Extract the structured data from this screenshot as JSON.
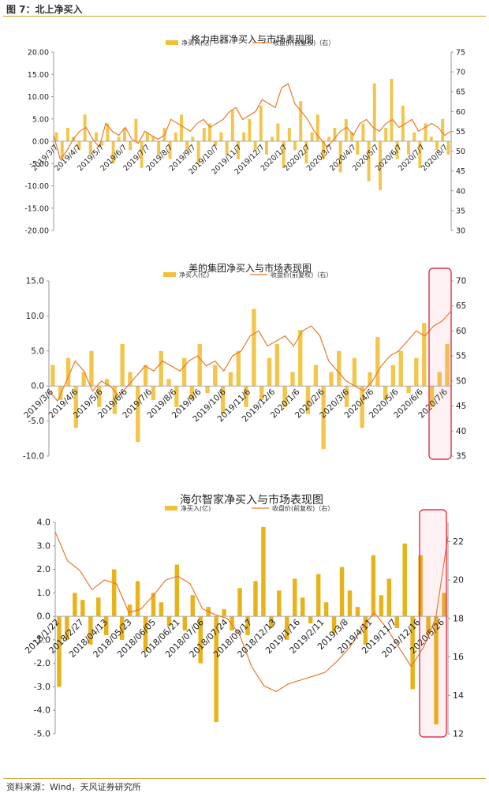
{
  "caption": "图 7：北上净买入",
  "source": "资料来源：Wind，天风证券研究所",
  "colors": {
    "bar": "#f2c037",
    "barStrong": "#e5ab00",
    "line": "#e8792b",
    "highlightStroke": "#e0334a",
    "highlightFill": "rgba(240,120,140,0.10)",
    "rule": "#c9a227"
  },
  "chart_data": [
    {
      "type": "bar+line",
      "title": "格力电器净买入与市场表现图",
      "legend": {
        "bar": "净买入(亿)",
        "line": "收盘价(前复权)（右）",
        "placement": "top-center"
      },
      "yleft": {
        "min": -20,
        "max": 20,
        "ticks": [
          "20.00",
          "15.00",
          "10.00",
          "5.00",
          "0.00",
          "-5.00",
          "-10.00",
          "-15.00",
          "-20.00"
        ]
      },
      "yright": {
        "min": 30,
        "max": 75,
        "ticks": [
          "75",
          "70",
          "65",
          "60",
          "55",
          "50",
          "45",
          "40",
          "35",
          "30"
        ]
      },
      "xticks": [
        "2019/3/7",
        "2019/4/7",
        "2019/5/7",
        "2019/6/7",
        "2019/7/7",
        "2019/8/7",
        "2019/9/7",
        "2019/10/7",
        "2019/11/7",
        "2019/12/7",
        "2020/1/7",
        "2020/2/7",
        "2020/3/7",
        "2020/4/7",
        "2020/5/7",
        "2020/6/7",
        "2020/7/7",
        "2020/8/7"
      ],
      "line": [
        54,
        48,
        50,
        53,
        55,
        56,
        53,
        51,
        57,
        55,
        54,
        56,
        53,
        52,
        55,
        54,
        53,
        54,
        58,
        57,
        56,
        55,
        57,
        58,
        56,
        57,
        58,
        60,
        61,
        58,
        59,
        60,
        63,
        62,
        61,
        66,
        67,
        62,
        60,
        58,
        55,
        53,
        51,
        53,
        55,
        56,
        54,
        57,
        58,
        56,
        55,
        57,
        58,
        56,
        57,
        58,
        55,
        56,
        57,
        56,
        54,
        55
      ],
      "bars": [
        2,
        -4,
        3,
        1,
        -2,
        6,
        -3,
        2,
        -1,
        4,
        -5,
        1,
        3,
        -2,
        5,
        -6,
        2,
        1,
        -3,
        3,
        -4,
        2,
        6,
        -2,
        1,
        -5,
        3,
        4,
        -1,
        2,
        -3,
        7,
        -4,
        2,
        5,
        -2,
        8,
        -3,
        1,
        4,
        -6,
        3,
        -2,
        9,
        -5,
        2,
        6,
        -4,
        1,
        3,
        -7,
        5,
        2,
        -3,
        4,
        -9,
        13,
        -11,
        3,
        14,
        -4,
        8,
        -3,
        2,
        -6,
        4,
        1,
        -2,
        5,
        -3
      ],
      "highlight": null
    },
    {
      "type": "bar+line",
      "title": "美的集团净买入与市场表现图",
      "legend": {
        "bar": "净买入(亿)",
        "line": "收盘价(前复权)（右）",
        "placement": "top-center"
      },
      "yleft": {
        "min": -10,
        "max": 15,
        "ticks": [
          "15.0",
          "10.0",
          "5.0",
          "0.0",
          "-5.0",
          "-10.0"
        ]
      },
      "yright": {
        "min": 35,
        "max": 70,
        "ticks": [
          "70",
          "65",
          "60",
          "55",
          "50",
          "45",
          "40",
          "35"
        ]
      },
      "xticks": [
        "2019/3/6",
        "2019/4/6",
        "2019/5/6",
        "2019/6/6",
        "2019/7/6",
        "2019/8/6",
        "2019/9/6",
        "2019/10/6",
        "2019/11/6",
        "2019/12/6",
        "2020/1/6",
        "2020/2/6",
        "2020/3/6",
        "2020/4/6",
        "2020/5/6",
        "2020/6/6",
        "2020/7/6"
      ],
      "line": [
        48,
        46,
        50,
        54,
        52,
        48,
        50,
        49,
        47,
        49,
        51,
        53,
        52,
        54,
        53,
        52,
        54,
        55,
        53,
        54,
        52,
        55,
        56,
        59,
        60,
        57,
        58,
        59,
        57,
        60,
        61,
        59,
        54,
        52,
        50,
        49,
        48,
        50,
        53,
        55,
        56,
        58,
        60,
        59,
        61,
        62,
        64
      ],
      "bars": [
        3,
        -2,
        4,
        -6,
        2,
        5,
        -3,
        1,
        -4,
        6,
        2,
        -8,
        3,
        -2,
        5,
        1,
        -3,
        4,
        -2,
        6,
        -1,
        3,
        -4,
        2,
        5,
        -3,
        11,
        -2,
        4,
        6,
        -3,
        2,
        8,
        -4,
        3,
        -9,
        2,
        5,
        -3,
        4,
        -6,
        2,
        7,
        -2,
        3,
        5,
        -1,
        4,
        9,
        -3,
        2,
        6
      ],
      "highlight": {
        "x_from": "2020/6/6",
        "x_to": "2020/7/6"
      }
    },
    {
      "type": "bar+line",
      "title": "海尔智家净买入与市场表现图",
      "legend": {
        "bar": "净买入(亿)",
        "line": "收盘价(前复权)（右）",
        "placement": "top-center"
      },
      "yleft": {
        "min": -5,
        "max": 4,
        "ticks": [
          "4.0",
          "3.0",
          "2.0",
          "1.0",
          "0.0",
          "-1.0",
          "-2.0",
          "-3.0",
          "-4.0",
          "-5.0"
        ]
      },
      "yright": {
        "min": 12,
        "max": 23,
        "ticks": [
          "22",
          "20",
          "18",
          "16",
          "14",
          "12"
        ]
      },
      "xticks": [
        "2018/1/22",
        "2018/2/27",
        "2018/04/13",
        "2018/05/23",
        "2018/06/05",
        "2018/06/21",
        "2018/07/06",
        "2018/07/24",
        "2018/09/17",
        "2018/12/13",
        "2019/1/16",
        "2019/2/11",
        "2019/3/8",
        "2019/4/11",
        "2019/11/7",
        "2019/12/16",
        "2020/5/26"
      ],
      "line": [
        22.5,
        21,
        20.5,
        19.5,
        20,
        19.8,
        18.3,
        18.5,
        19.2,
        20,
        20.2,
        19.8,
        18.5,
        18.2,
        18,
        17.2,
        15.5,
        14.5,
        14.2,
        14.6,
        14.8,
        15,
        15.2,
        15.8,
        16.5,
        17.5,
        18.3,
        17.5,
        16.5,
        15.5,
        16.5,
        18,
        22.3
      ],
      "bars": [
        -3,
        -1,
        1,
        0.7,
        -1.2,
        0.8,
        -0.8,
        2,
        -1,
        0.5,
        1.5,
        -1.5,
        1,
        0.6,
        -0.4,
        2.2,
        -0.6,
        0.9,
        -2,
        0.4,
        -4.5,
        0.3,
        -0.6,
        1.2,
        -0.8,
        1.5,
        3.8,
        -0.5,
        1.1,
        -1,
        1.6,
        0.8,
        -0.3,
        1.8,
        0.6,
        -0.7,
        2.1,
        1.1,
        0.4,
        -1.2,
        2.6,
        0.9,
        1.6,
        -0.5,
        3.1,
        -3.1,
        2.6,
        -0.8,
        -4.6,
        1
      ],
      "highlight": {
        "x_from": "2020/5/26",
        "x_to": "end"
      }
    }
  ]
}
